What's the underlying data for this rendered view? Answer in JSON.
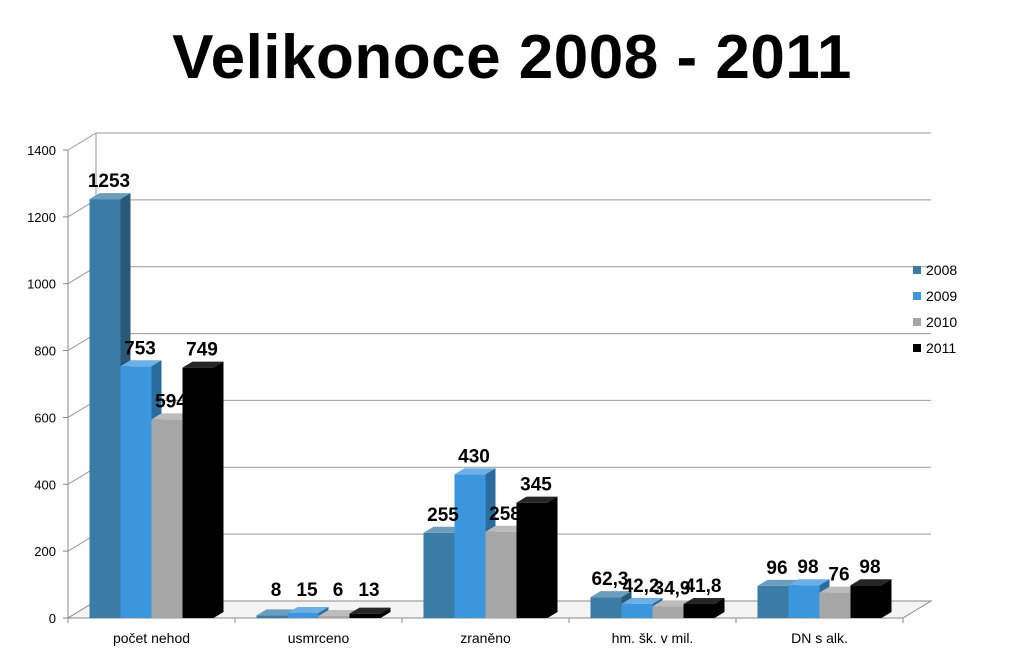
{
  "chart_data": {
    "type": "bar",
    "title": "Velikonoce 2008 - 2011",
    "categories": [
      "počet nehod",
      "usmrceno",
      "zraněno",
      "hm. šk. v mil.",
      "DN s alk."
    ],
    "series": [
      {
        "name": "2008",
        "color": "#3a7ca5",
        "values": [
          1253,
          8,
          255,
          62.3,
          96
        ],
        "labels": [
          "1253",
          "8",
          "255",
          "62,3",
          "96"
        ]
      },
      {
        "name": "2009",
        "color": "#3c96dd",
        "values": [
          753,
          15,
          430,
          42.2,
          98
        ],
        "labels": [
          "753",
          "15",
          "430",
          "42,2",
          "98"
        ]
      },
      {
        "name": "2010",
        "color": "#a6a6a6",
        "values": [
          594,
          6,
          258,
          34.9,
          76
        ],
        "labels": [
          "594",
          "6",
          "258",
          "34,9",
          "76"
        ]
      },
      {
        "name": "2011",
        "color": "#000000",
        "values": [
          749,
          13,
          345,
          41.8,
          98
        ],
        "labels": [
          "749",
          "13",
          "345",
          "41,8",
          "98"
        ]
      }
    ],
    "ylim": [
      0,
      1400
    ],
    "yticks": [
      0,
      200,
      400,
      600,
      800,
      1000,
      1200,
      1400
    ],
    "grid": true,
    "legend": "right",
    "xlabel": "",
    "ylabel": ""
  }
}
